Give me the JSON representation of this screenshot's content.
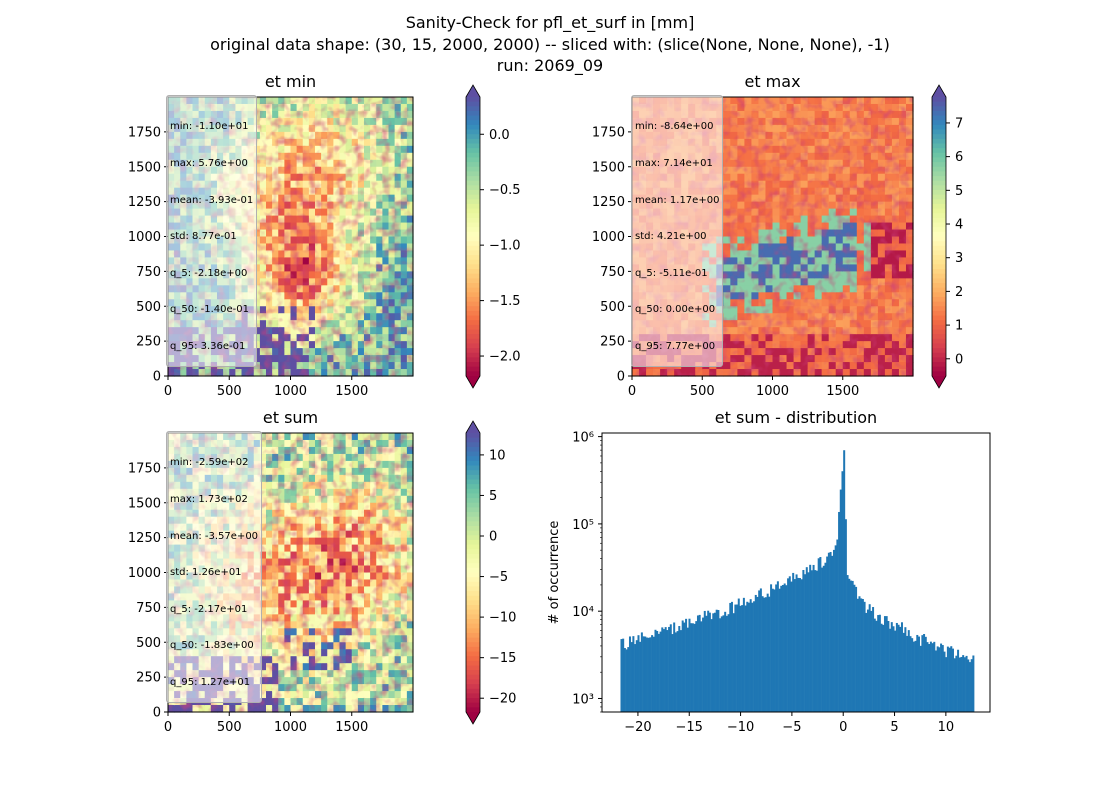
{
  "figure": {
    "title_lines": [
      "Sanity-Check for pfl_et_surf in [mm]",
      "original data shape: (30, 15, 2000, 2000) -- sliced with: (slice(None, None, None), -1)",
      "run: 2069_09"
    ]
  },
  "colormap": {
    "name": "Spectral",
    "stops": [
      "#9e0142",
      "#d53e4f",
      "#f46d43",
      "#fdae61",
      "#fee08b",
      "#ffffbf",
      "#e6f598",
      "#abdda4",
      "#66c2a5",
      "#3288bd",
      "#5e4fa2"
    ]
  },
  "panels": [
    {
      "title": "et min",
      "stats": [
        "min: -1.10e+01",
        "max: 5.76e+00",
        "mean: -3.93e-01",
        "std: 8.77e-01",
        "q_5: -2.18e+00",
        "q_50: -1.40e-01",
        "q_95: 3.36e-01"
      ],
      "x_ticks": [
        "0",
        "500",
        "1000",
        "1500"
      ],
      "y_ticks": [
        "0",
        "250",
        "500",
        "750",
        "1000",
        "1250",
        "1500",
        "1750"
      ],
      "colorbar": {
        "vmin": -2.18,
        "vmax": 0.336,
        "extend": "both",
        "ticks": [
          0.0,
          -0.5,
          -1.0,
          -1.5,
          -2.0
        ],
        "tick_labels": [
          "0.0",
          "−0.5",
          "−1.0",
          "−1.5",
          "−2.0"
        ]
      }
    },
    {
      "title": "et max",
      "stats": [
        "min: -8.64e+00",
        "max: 7.14e+01",
        "mean: 1.17e+00",
        "std: 4.21e+00",
        "q_5: -5.11e-01",
        "q_50: 0.00e+00",
        "q_95: 7.77e+00"
      ],
      "x_ticks": [
        "0",
        "500",
        "1000",
        "1500"
      ],
      "y_ticks": [
        "0",
        "250",
        "500",
        "750",
        "1000",
        "1250",
        "1500",
        "1750"
      ],
      "colorbar": {
        "vmin": -0.511,
        "vmax": 7.77,
        "extend": "both",
        "ticks": [
          0,
          1,
          2,
          3,
          4,
          5,
          6,
          7
        ],
        "tick_labels": [
          "0",
          "1",
          "2",
          "3",
          "4",
          "5",
          "6",
          "7"
        ]
      }
    },
    {
      "title": "et sum",
      "stats": [
        "min: -2.59e+02",
        "max: 1.73e+02",
        "mean: -3.57e+00",
        "std: 1.26e+01",
        "q_5: -2.17e+01",
        "q_50: -1.83e+00",
        "q_95: 1.27e+01"
      ],
      "x_ticks": [
        "0",
        "500",
        "1000",
        "1500"
      ],
      "y_ticks": [
        "0",
        "250",
        "500",
        "750",
        "1000",
        "1250",
        "1500",
        "1750"
      ],
      "colorbar": {
        "vmin": -21.7,
        "vmax": 12.7,
        "extend": "both",
        "ticks": [
          10,
          5,
          0,
          -5,
          -10,
          -15,
          -20
        ],
        "tick_labels": [
          "10",
          "5",
          "0",
          "−5",
          "−10",
          "−15",
          "−20"
        ]
      }
    }
  ],
  "chart_data": {
    "type": "bar",
    "title": "et sum - distribution",
    "xlabel": "",
    "ylabel": "# of occurrence",
    "xlim": [
      -23.5,
      14.3
    ],
    "ylim": [
      700,
      1100000
    ],
    "yscale": "log",
    "bar_color": "#1f77b4",
    "x_ticks": [
      -20,
      -15,
      -10,
      -5,
      0,
      5,
      10
    ],
    "x_tick_labels": [
      "−20",
      "−15",
      "−10",
      "−5",
      "0",
      "5",
      "10"
    ],
    "y_ticks": [
      1000,
      10000,
      100000,
      1000000
    ],
    "y_tick_labels": [
      "10³",
      "10⁴",
      "10⁵",
      "10⁶"
    ],
    "bins": [
      [
        -21.7,
        4100
      ],
      [
        -20.0,
        4900
      ],
      [
        -18.0,
        5700
      ],
      [
        -16.0,
        6800
      ],
      [
        -14.0,
        8200
      ],
      [
        -12.0,
        10000
      ],
      [
        -10.0,
        12500
      ],
      [
        -8.0,
        16000
      ],
      [
        -6.0,
        21000
      ],
      [
        -4.0,
        28000
      ],
      [
        -2.0,
        38000
      ],
      [
        -1.0,
        50000
      ],
      [
        -0.6,
        80000
      ],
      [
        0.0,
        850000
      ],
      [
        0.3,
        25000
      ],
      [
        1.0,
        18000
      ],
      [
        2.0,
        11000
      ],
      [
        4.0,
        8000
      ],
      [
        6.0,
        6000
      ],
      [
        8.0,
        4500
      ],
      [
        10.0,
        3500
      ],
      [
        12.7,
        2800
      ]
    ]
  }
}
